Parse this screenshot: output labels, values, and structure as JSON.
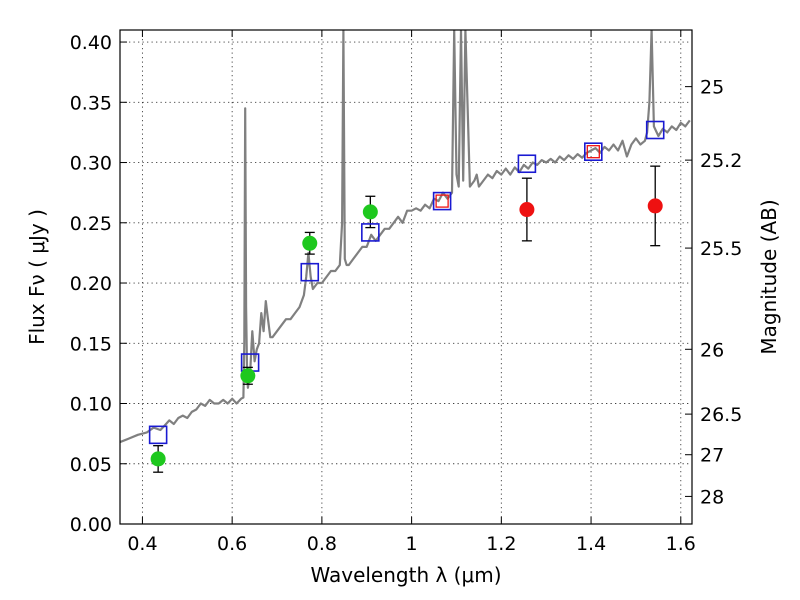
{
  "chart_data": {
    "type": "scatter",
    "xlabel": "Wavelength  λ (μm)",
    "ylabel": "Flux  Fν  ( μJy )",
    "y2label": "Magnitude (AB)",
    "xlim": [
      0.35,
      1.625
    ],
    "ylim": [
      0.0,
      0.41
    ],
    "grid": true,
    "x_ticks": [
      0.4,
      0.6,
      0.8,
      1.0,
      1.2,
      1.4,
      1.6
    ],
    "x_tick_labels": [
      "0.4",
      "0.6",
      "0.8",
      "1",
      "1.2",
      "1.4",
      "1.6"
    ],
    "y_ticks": [
      0.0,
      0.05,
      0.1,
      0.15,
      0.2,
      0.25,
      0.3,
      0.35,
      0.4
    ],
    "y_tick_labels": [
      "0.00",
      "0.05",
      "0.10",
      "0.15",
      "0.20",
      "0.25",
      "0.30",
      "0.35",
      "0.40"
    ],
    "mag_ticks": [
      {
        "label": "25",
        "flux": 0.363
      },
      {
        "label": "25.2",
        "flux": 0.302
      },
      {
        "label": "25.5",
        "flux": 0.229
      },
      {
        "label": "26",
        "flux": 0.145
      },
      {
        "label": "26.5",
        "flux": 0.0912
      },
      {
        "label": "27",
        "flux": 0.0575
      },
      {
        "label": "28",
        "flux": 0.0229
      }
    ],
    "series": [
      {
        "type": "line",
        "color": "#808080",
        "x": [
          0.35,
          0.37,
          0.39,
          0.41,
          0.425,
          0.44,
          0.45,
          0.46,
          0.47,
          0.48,
          0.49,
          0.5,
          0.51,
          0.52,
          0.53,
          0.54,
          0.55,
          0.56,
          0.57,
          0.58,
          0.59,
          0.6,
          0.61,
          0.62,
          0.625,
          0.627,
          0.629,
          0.631,
          0.633,
          0.635,
          0.64,
          0.645,
          0.65,
          0.655,
          0.66,
          0.665,
          0.67,
          0.675,
          0.68,
          0.685,
          0.69,
          0.7,
          0.71,
          0.72,
          0.73,
          0.74,
          0.75,
          0.76,
          0.765,
          0.77,
          0.775,
          0.78,
          0.79,
          0.8,
          0.81,
          0.82,
          0.83,
          0.84,
          0.845,
          0.848,
          0.851,
          0.855,
          0.86,
          0.87,
          0.88,
          0.89,
          0.9,
          0.91,
          0.92,
          0.93,
          0.94,
          0.95,
          0.96,
          0.97,
          0.98,
          0.99,
          1.0,
          1.01,
          1.02,
          1.03,
          1.04,
          1.05,
          1.06,
          1.07,
          1.08,
          1.09,
          1.095,
          1.1,
          1.105,
          1.11,
          1.115,
          1.12,
          1.13,
          1.14,
          1.145,
          1.15,
          1.16,
          1.17,
          1.18,
          1.19,
          1.2,
          1.21,
          1.22,
          1.23,
          1.24,
          1.25,
          1.26,
          1.27,
          1.28,
          1.29,
          1.3,
          1.31,
          1.32,
          1.33,
          1.34,
          1.35,
          1.36,
          1.37,
          1.38,
          1.39,
          1.4,
          1.41,
          1.42,
          1.43,
          1.44,
          1.45,
          1.46,
          1.47,
          1.48,
          1.49,
          1.5,
          1.51,
          1.52,
          1.525,
          1.53,
          1.535,
          1.54,
          1.55,
          1.56,
          1.57,
          1.58,
          1.59,
          1.6,
          1.61,
          1.62
        ],
        "y": [
          0.068,
          0.071,
          0.074,
          0.076,
          0.08,
          0.078,
          0.082,
          0.086,
          0.083,
          0.088,
          0.09,
          0.088,
          0.093,
          0.095,
          0.1,
          0.098,
          0.103,
          0.1,
          0.1,
          0.103,
          0.1,
          0.104,
          0.1,
          0.104,
          0.105,
          0.15,
          0.345,
          0.18,
          0.13,
          0.113,
          0.125,
          0.16,
          0.135,
          0.145,
          0.15,
          0.175,
          0.16,
          0.185,
          0.17,
          0.155,
          0.155,
          0.16,
          0.165,
          0.17,
          0.17,
          0.175,
          0.18,
          0.19,
          0.205,
          0.225,
          0.205,
          0.195,
          0.2,
          0.2,
          0.205,
          0.21,
          0.21,
          0.215,
          0.25,
          0.41,
          0.22,
          0.215,
          0.215,
          0.22,
          0.225,
          0.23,
          0.23,
          0.24,
          0.235,
          0.24,
          0.245,
          0.245,
          0.25,
          0.255,
          0.25,
          0.26,
          0.26,
          0.262,
          0.26,
          0.265,
          0.262,
          0.27,
          0.268,
          0.275,
          0.27,
          0.275,
          0.41,
          0.29,
          0.28,
          0.41,
          0.285,
          0.41,
          0.28,
          0.285,
          0.29,
          0.28,
          0.285,
          0.29,
          0.287,
          0.293,
          0.29,
          0.295,
          0.29,
          0.296,
          0.292,
          0.298,
          0.295,
          0.3,
          0.298,
          0.302,
          0.3,
          0.303,
          0.3,
          0.305,
          0.302,
          0.306,
          0.303,
          0.307,
          0.304,
          0.308,
          0.31,
          0.312,
          0.308,
          0.313,
          0.31,
          0.315,
          0.31,
          0.318,
          0.305,
          0.315,
          0.32,
          0.315,
          0.318,
          0.325,
          0.35,
          0.41,
          0.33,
          0.322,
          0.328,
          0.325,
          0.33,
          0.327,
          0.333,
          0.33,
          0.335
        ]
      },
      {
        "type": "scatter-errorbar",
        "color": "#1ec81e",
        "points": [
          {
            "x": 0.435,
            "y": 0.054,
            "err": 0.011
          },
          {
            "x": 0.635,
            "y": 0.123,
            "err": 0.007
          },
          {
            "x": 0.773,
            "y": 0.233,
            "err": 0.009
          },
          {
            "x": 0.908,
            "y": 0.259,
            "err": 0.013
          }
        ]
      },
      {
        "type": "scatter-errorbar",
        "color": "#ee1111",
        "points": [
          {
            "x": 1.257,
            "y": 0.261,
            "err": 0.026
          },
          {
            "x": 1.543,
            "y": 0.264,
            "err": 0.033
          }
        ]
      },
      {
        "type": "square-markers",
        "color": "#1a1ad2",
        "points": [
          {
            "x": 0.435,
            "y": 0.074
          },
          {
            "x": 0.64,
            "y": 0.134
          },
          {
            "x": 0.773,
            "y": 0.209
          },
          {
            "x": 0.908,
            "y": 0.242
          },
          {
            "x": 1.068,
            "y": 0.268
          },
          {
            "x": 1.257,
            "y": 0.299
          },
          {
            "x": 1.405,
            "y": 0.309
          },
          {
            "x": 1.543,
            "y": 0.327
          }
        ]
      },
      {
        "type": "square-markers-inner",
        "color": "#ee1111",
        "points": [
          {
            "x": 1.068,
            "y": 0.268
          },
          {
            "x": 1.405,
            "y": 0.309
          }
        ]
      }
    ]
  }
}
